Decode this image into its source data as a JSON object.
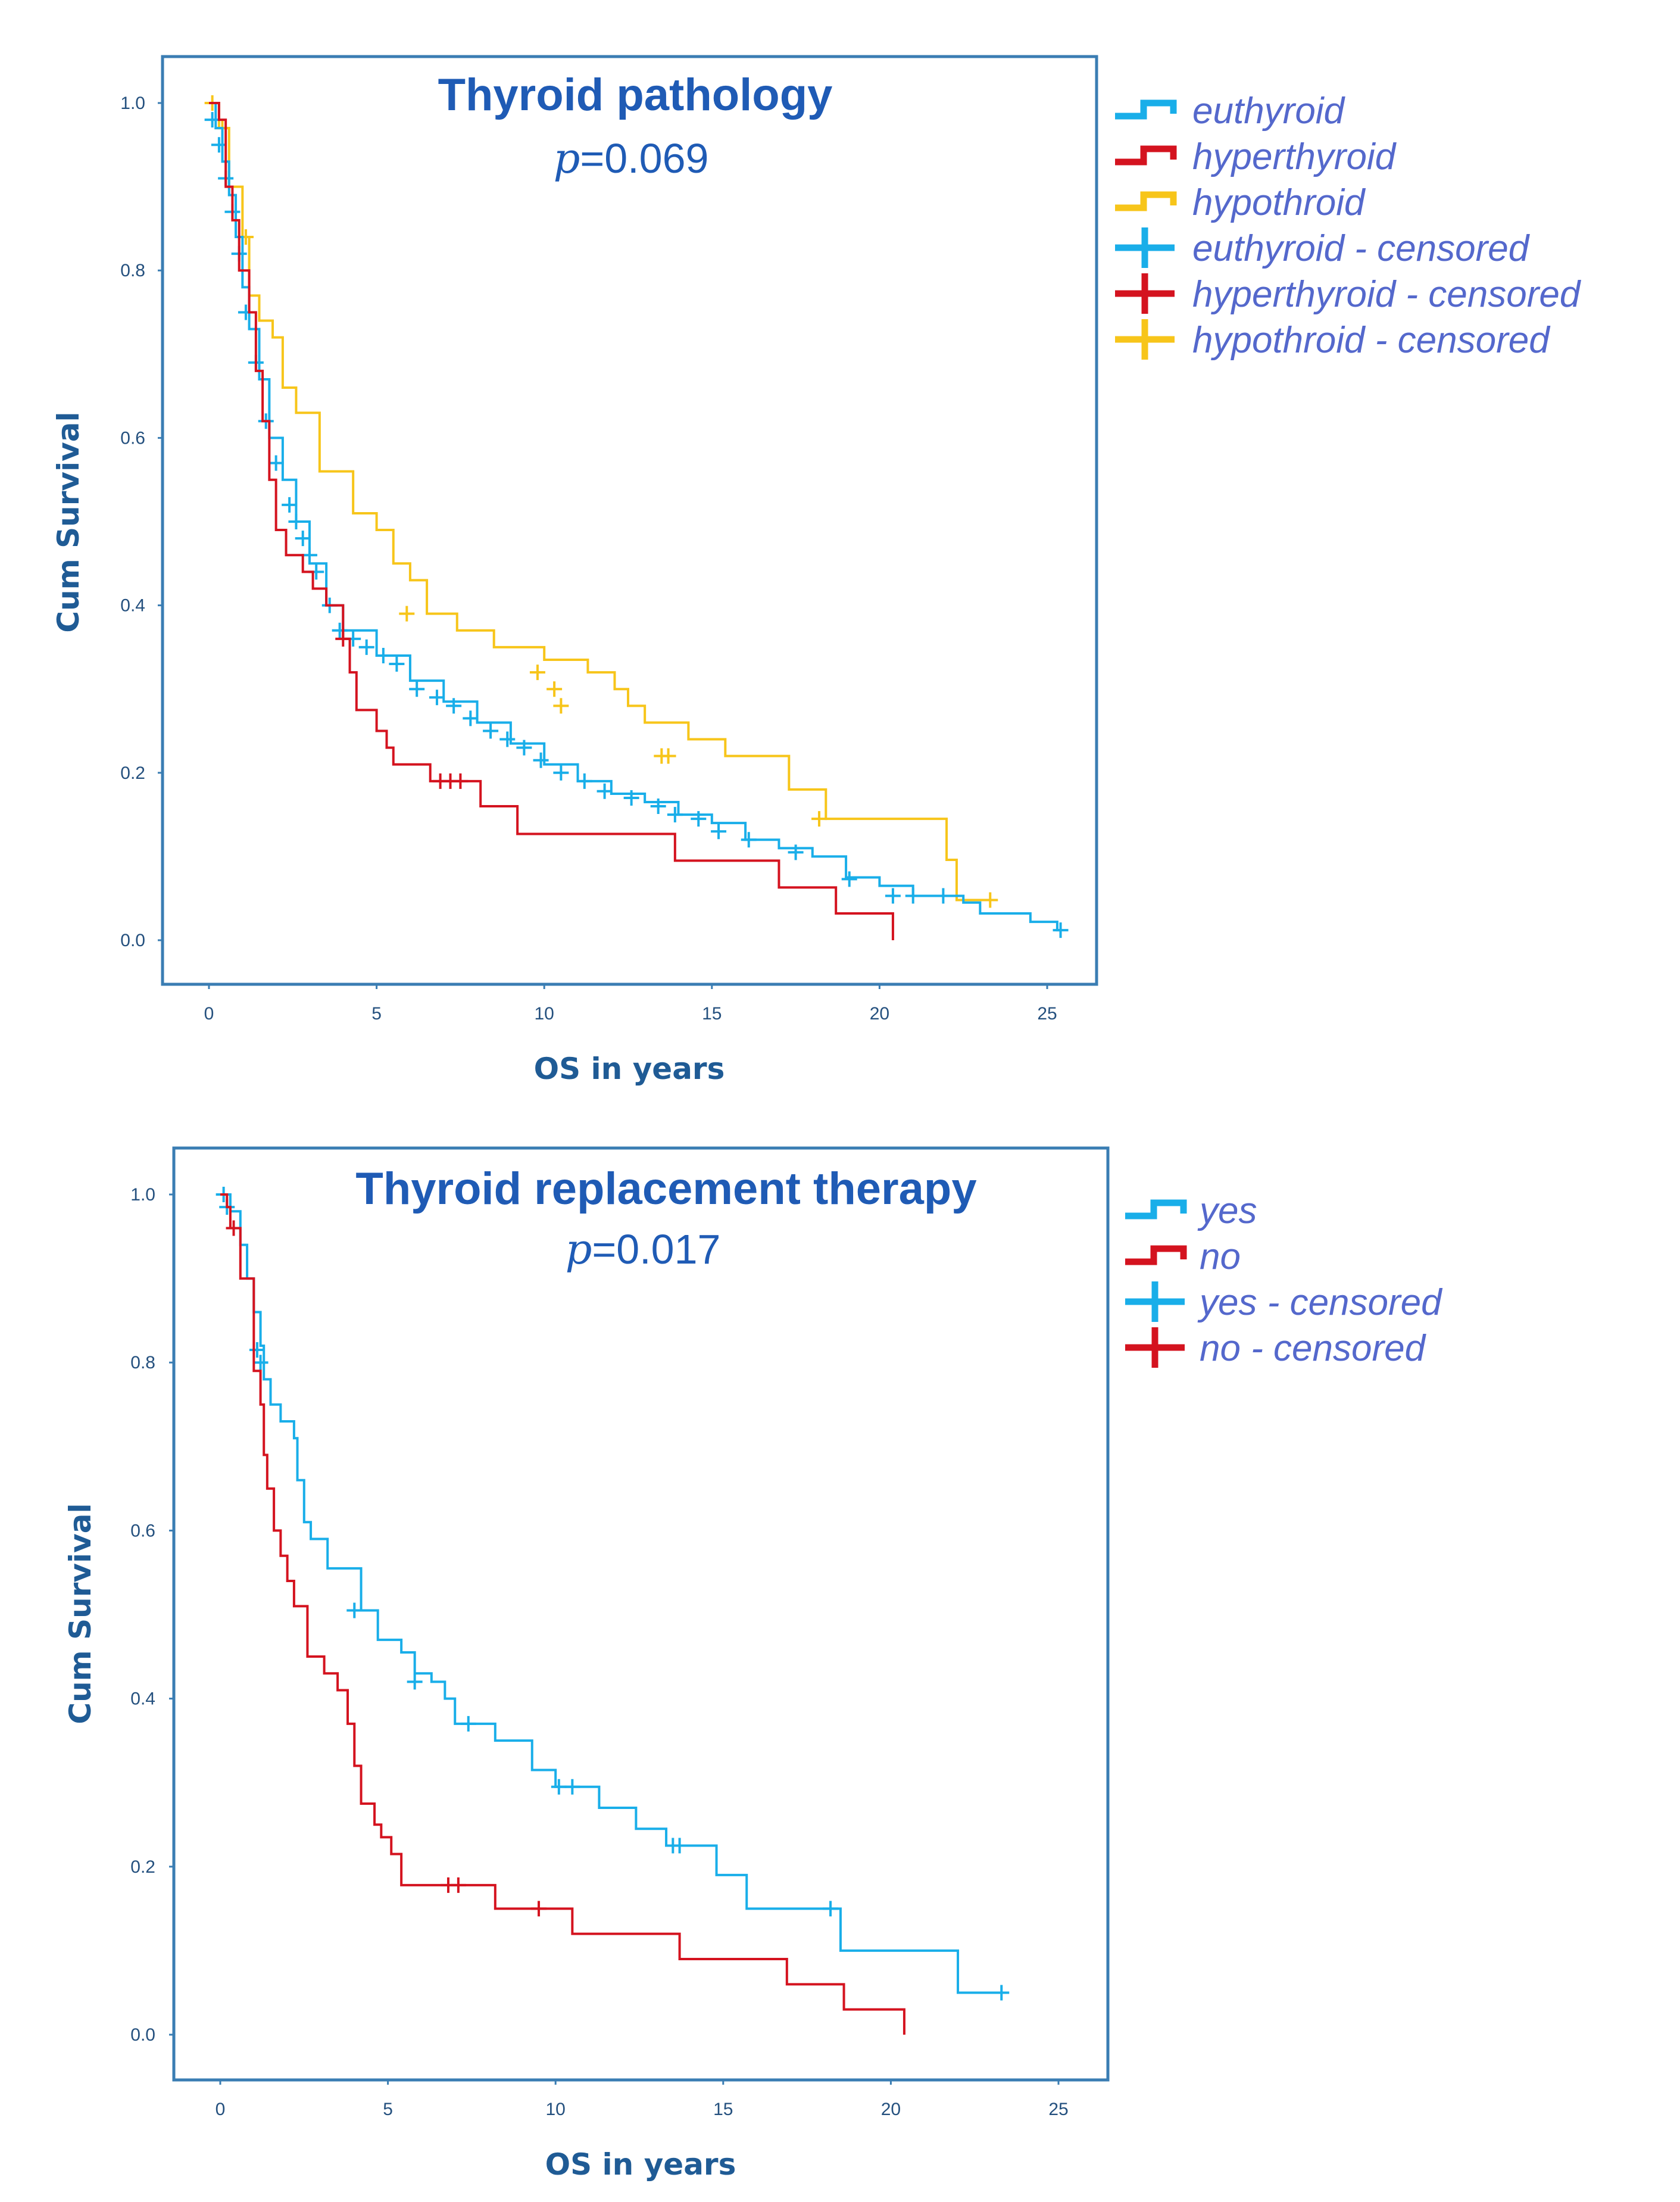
{
  "colors": {
    "blue": "#19aee9",
    "red": "#d4131f",
    "yellow": "#f7c51a",
    "frame": "#3a7db3"
  },
  "chart_data": [
    {
      "type": "line",
      "subtype": "kaplan-meier",
      "title": "Thyroid pathology",
      "p_label": "p",
      "p_value": "=0.069",
      "xlabel": "OS in years",
      "ylabel": "Cum Survival",
      "xlim": [
        -1.4,
        26.5
      ],
      "ylim": [
        -0.05,
        1.05
      ],
      "x_ticks": [
        "0",
        "5",
        "10",
        "15",
        "20",
        "25"
      ],
      "y_ticks": [
        "0.0",
        "0.2",
        "0.4",
        "0.6",
        "0.8",
        "1.0"
      ],
      "legend_position": "outside-right-top",
      "legend": [
        {
          "label": "euthyroid",
          "kind": "line",
          "color": "blue"
        },
        {
          "label": "hyperthyroid",
          "kind": "line",
          "color": "red"
        },
        {
          "label": "hypothroid",
          "kind": "line",
          "color": "yellow"
        },
        {
          "label": "euthyroid - censored",
          "kind": "cross",
          "color": "blue"
        },
        {
          "label": "hyperthyroid - censored",
          "kind": "cross",
          "color": "red"
        },
        {
          "label": "hypothroid - censored",
          "kind": "cross",
          "color": "yellow"
        }
      ],
      "series": [
        {
          "name": "hypothroid",
          "color": "yellow",
          "steps": [
            [
              0,
              1
            ],
            [
              0.3,
              0.97
            ],
            [
              0.6,
              0.9
            ],
            [
              1,
              0.84
            ],
            [
              1.2,
              0.77
            ],
            [
              1.5,
              0.74
            ],
            [
              1.9,
              0.72
            ],
            [
              2.2,
              0.66
            ],
            [
              2.6,
              0.63
            ],
            [
              3.3,
              0.56
            ],
            [
              4.3,
              0.51
            ],
            [
              5,
              0.49
            ],
            [
              5.5,
              0.45
            ],
            [
              6,
              0.43
            ],
            [
              6.5,
              0.39
            ],
            [
              7.4,
              0.37
            ],
            [
              8.5,
              0.35
            ],
            [
              10,
              0.335
            ],
            [
              11.3,
              0.32
            ],
            [
              12.1,
              0.3
            ],
            [
              12.5,
              0.28
            ],
            [
              13,
              0.26
            ],
            [
              14.3,
              0.24
            ],
            [
              15.4,
              0.22
            ],
            [
              17.3,
              0.18
            ],
            [
              18.4,
              0.145
            ],
            [
              22,
              0.096
            ],
            [
              22.3,
              0.048
            ]
          ],
          "end": 23.3,
          "censored": [
            [
              0.1,
              1.0
            ],
            [
              0.4,
              0.97
            ],
            [
              1.1,
              0.84
            ],
            [
              5.9,
              0.39
            ],
            [
              9.8,
              0.32
            ],
            [
              10.3,
              0.3
            ],
            [
              10.5,
              0.28
            ],
            [
              13.5,
              0.22
            ],
            [
              13.7,
              0.22
            ],
            [
              18.2,
              0.145
            ],
            [
              23.3,
              0.048
            ]
          ]
        },
        {
          "name": "euthyroid",
          "color": "blue",
          "steps": [
            [
              0,
              1
            ],
            [
              0.2,
              0.97
            ],
            [
              0.4,
              0.93
            ],
            [
              0.6,
              0.89
            ],
            [
              0.8,
              0.84
            ],
            [
              1,
              0.78
            ],
            [
              1.2,
              0.73
            ],
            [
              1.5,
              0.67
            ],
            [
              1.8,
              0.6
            ],
            [
              2.2,
              0.55
            ],
            [
              2.6,
              0.5
            ],
            [
              3,
              0.45
            ],
            [
              3.5,
              0.4
            ],
            [
              4,
              0.37
            ],
            [
              5,
              0.34
            ],
            [
              6,
              0.31
            ],
            [
              7,
              0.285
            ],
            [
              8,
              0.26
            ],
            [
              9,
              0.235
            ],
            [
              10,
              0.21
            ],
            [
              11,
              0.19
            ],
            [
              12,
              0.175
            ],
            [
              13,
              0.165
            ],
            [
              14,
              0.15
            ],
            [
              15,
              0.14
            ],
            [
              16,
              0.12
            ],
            [
              17,
              0.11
            ],
            [
              18,
              0.1
            ],
            [
              19,
              0.075
            ],
            [
              20,
              0.065
            ],
            [
              21,
              0.053
            ],
            [
              22.5,
              0.045
            ],
            [
              23,
              0.032
            ],
            [
              24.5,
              0.022
            ],
            [
              25.3,
              0.012
            ]
          ],
          "end": 25.4,
          "censored": [
            [
              0.1,
              0.98
            ],
            [
              0.3,
              0.95
            ],
            [
              0.5,
              0.91
            ],
            [
              0.7,
              0.87
            ],
            [
              0.9,
              0.82
            ],
            [
              1.1,
              0.75
            ],
            [
              1.4,
              0.69
            ],
            [
              1.7,
              0.62
            ],
            [
              2.0,
              0.57
            ],
            [
              2.4,
              0.52
            ],
            [
              2.6,
              0.5
            ],
            [
              2.8,
              0.48
            ],
            [
              3.0,
              0.46
            ],
            [
              3.2,
              0.44
            ],
            [
              3.6,
              0.4
            ],
            [
              3.9,
              0.37
            ],
            [
              4.3,
              0.36
            ],
            [
              4.7,
              0.35
            ],
            [
              5.2,
              0.34
            ],
            [
              5.6,
              0.33
            ],
            [
              6.2,
              0.3
            ],
            [
              6.8,
              0.29
            ],
            [
              7.3,
              0.28
            ],
            [
              7.8,
              0.265
            ],
            [
              8.4,
              0.25
            ],
            [
              8.9,
              0.24
            ],
            [
              9.4,
              0.23
            ],
            [
              9.9,
              0.215
            ],
            [
              10.5,
              0.2
            ],
            [
              11.2,
              0.19
            ],
            [
              11.8,
              0.178
            ],
            [
              12.6,
              0.17
            ],
            [
              13.4,
              0.16
            ],
            [
              13.9,
              0.15
            ],
            [
              14.6,
              0.145
            ],
            [
              15.2,
              0.13
            ],
            [
              16.1,
              0.12
            ],
            [
              17.5,
              0.105
            ],
            [
              19.1,
              0.073
            ],
            [
              20.4,
              0.053
            ],
            [
              21,
              0.053
            ],
            [
              21.9,
              0.053
            ],
            [
              25.4,
              0.012
            ]
          ]
        },
        {
          "name": "hyperthyroid",
          "color": "red",
          "steps": [
            [
              0,
              1
            ],
            [
              0.3,
              0.98
            ],
            [
              0.5,
              0.9
            ],
            [
              0.7,
              0.86
            ],
            [
              0.9,
              0.8
            ],
            [
              1.2,
              0.75
            ],
            [
              1.4,
              0.68
            ],
            [
              1.6,
              0.62
            ],
            [
              1.8,
              0.55
            ],
            [
              2,
              0.49
            ],
            [
              2.3,
              0.46
            ],
            [
              2.8,
              0.44
            ],
            [
              3.1,
              0.42
            ],
            [
              3.5,
              0.4
            ],
            [
              4,
              0.36
            ],
            [
              4.2,
              0.32
            ],
            [
              4.4,
              0.275
            ],
            [
              5,
              0.25
            ],
            [
              5.3,
              0.23
            ],
            [
              5.5,
              0.21
            ],
            [
              6.6,
              0.19
            ],
            [
              8.1,
              0.16
            ],
            [
              9.2,
              0.127
            ],
            [
              13.9,
              0.095
            ],
            [
              17,
              0.063
            ],
            [
              18.7,
              0.032
            ],
            [
              20.4,
              0
            ]
          ],
          "end": 20.4,
          "censored": [
            [
              4,
              0.36
            ],
            [
              6.9,
              0.19
            ],
            [
              7.2,
              0.19
            ],
            [
              7.5,
              0.19
            ]
          ]
        }
      ]
    },
    {
      "type": "line",
      "subtype": "kaplan-meier",
      "title": "Thyroid replacement therapy",
      "p_label": "p",
      "p_value": "=0.017",
      "xlabel": "OS in years",
      "ylabel": "Cum Survival",
      "xlim": [
        -1.4,
        26.5
      ],
      "ylim": [
        -0.05,
        1.05
      ],
      "x_ticks": [
        "0",
        "5",
        "10",
        "15",
        "20",
        "25"
      ],
      "y_ticks": [
        "0.0",
        "0.2",
        "0.4",
        "0.6",
        "0.8",
        "1.0"
      ],
      "legend_position": "outside-right-top",
      "legend": [
        {
          "label": "yes",
          "kind": "line",
          "color": "blue"
        },
        {
          "label": "no",
          "kind": "line",
          "color": "red"
        },
        {
          "label": "yes - censored",
          "kind": "cross",
          "color": "blue"
        },
        {
          "label": "no - censored",
          "kind": "cross",
          "color": "red"
        }
      ],
      "series": [
        {
          "name": "yes",
          "color": "blue",
          "steps": [
            [
              0,
              1
            ],
            [
              0.3,
              0.98
            ],
            [
              0.6,
              0.94
            ],
            [
              0.8,
              0.9
            ],
            [
              1,
              0.86
            ],
            [
              1.2,
              0.82
            ],
            [
              1.3,
              0.78
            ],
            [
              1.5,
              0.75
            ],
            [
              1.8,
              0.73
            ],
            [
              2.2,
              0.71
            ],
            [
              2.3,
              0.66
            ],
            [
              2.5,
              0.61
            ],
            [
              2.7,
              0.59
            ],
            [
              3.2,
              0.555
            ],
            [
              4.2,
              0.505
            ],
            [
              4.7,
              0.47
            ],
            [
              5.4,
              0.455
            ],
            [
              5.8,
              0.43
            ],
            [
              6.3,
              0.42
            ],
            [
              6.7,
              0.4
            ],
            [
              7,
              0.37
            ],
            [
              8.2,
              0.35
            ],
            [
              9.3,
              0.315
            ],
            [
              10,
              0.295
            ],
            [
              11.3,
              0.27
            ],
            [
              12.4,
              0.245
            ],
            [
              13.3,
              0.225
            ],
            [
              14.8,
              0.19
            ],
            [
              15.7,
              0.15
            ],
            [
              18.5,
              0.1
            ],
            [
              22,
              0.05
            ]
          ],
          "end": 23.3,
          "censored": [
            [
              0.1,
              1.0
            ],
            [
              0.2,
              0.985
            ],
            [
              1.1,
              0.815
            ],
            [
              1.2,
              0.8
            ],
            [
              4.0,
              0.505
            ],
            [
              5.8,
              0.42
            ],
            [
              7.4,
              0.37
            ],
            [
              10.1,
              0.295
            ],
            [
              10.5,
              0.295
            ],
            [
              13.5,
              0.225
            ],
            [
              13.7,
              0.225
            ],
            [
              18.2,
              0.15
            ],
            [
              23.3,
              0.05
            ]
          ]
        },
        {
          "name": "no",
          "color": "red",
          "steps": [
            [
              0,
              1
            ],
            [
              0.2,
              0.985
            ],
            [
              0.3,
              0.96
            ],
            [
              0.6,
              0.9
            ],
            [
              1,
              0.79
            ],
            [
              1.2,
              0.75
            ],
            [
              1.3,
              0.69
            ],
            [
              1.4,
              0.65
            ],
            [
              1.6,
              0.6
            ],
            [
              1.8,
              0.57
            ],
            [
              2,
              0.54
            ],
            [
              2.2,
              0.51
            ],
            [
              2.6,
              0.45
            ],
            [
              3.1,
              0.43
            ],
            [
              3.5,
              0.41
            ],
            [
              3.8,
              0.37
            ],
            [
              4,
              0.32
            ],
            [
              4.2,
              0.275
            ],
            [
              4.6,
              0.25
            ],
            [
              4.8,
              0.235
            ],
            [
              5.1,
              0.215
            ],
            [
              5.4,
              0.178
            ],
            [
              8.2,
              0.15
            ],
            [
              10.5,
              0.12
            ],
            [
              13.7,
              0.09
            ],
            [
              16.9,
              0.06
            ],
            [
              18.6,
              0.03
            ],
            [
              20.4,
              0
            ]
          ],
          "end": 20.4,
          "censored": [
            [
              0.4,
              0.96
            ],
            [
              6.8,
              0.178
            ],
            [
              7.1,
              0.178
            ],
            [
              9.5,
              0.15
            ]
          ]
        }
      ]
    }
  ]
}
